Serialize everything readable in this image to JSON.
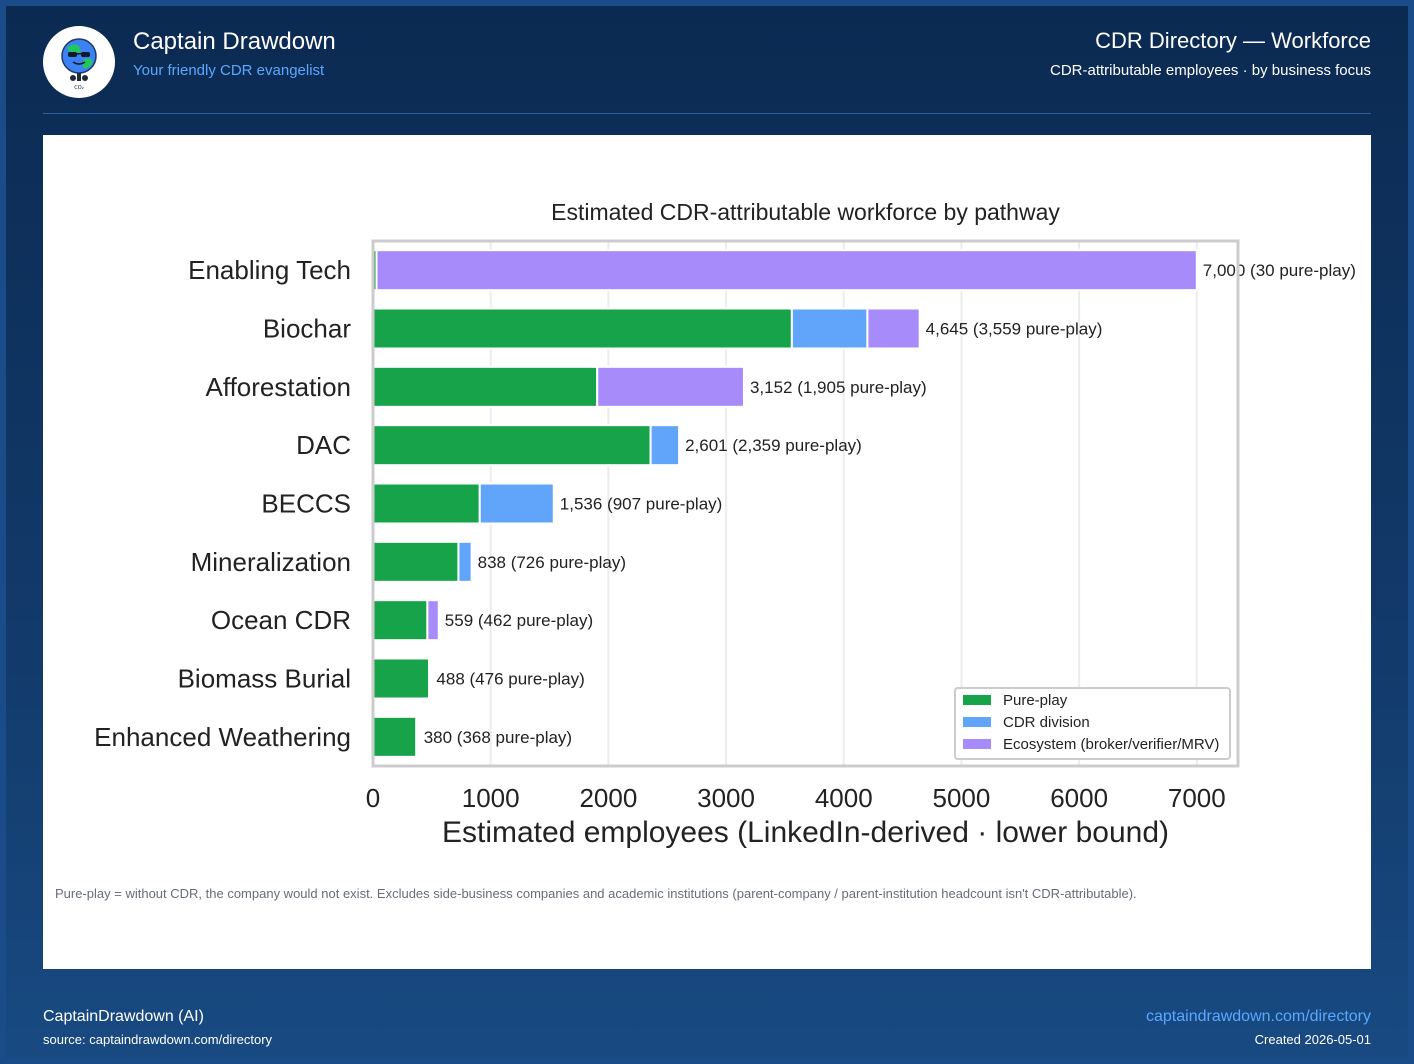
{
  "header": {
    "brand_name": "Captain Drawdown",
    "brand_tagline": "Your friendly CDR evangelist",
    "title": "CDR Directory — Workforce",
    "subtitle": "CDR-attributable employees · by business focus",
    "logo_icon": "earth-mascot-icon",
    "logo_text": "CO₂"
  },
  "colors": {
    "pure_play": "#16a34a",
    "cdr_division": "#60a5fa",
    "ecosystem": "#a78bfa",
    "accent": "#5aa8ff"
  },
  "chart_data": {
    "type": "bar",
    "orientation": "horizontal",
    "stacked": true,
    "title": "Estimated CDR-attributable workforce by pathway",
    "xlabel": "Estimated employees (LinkedIn-derived · lower bound)",
    "ylabel": "",
    "xlim": [
      0,
      7350
    ],
    "xticks": [
      0,
      1000,
      2000,
      3000,
      4000,
      5000,
      6000,
      7000
    ],
    "grid": true,
    "legend_position": "lower-right",
    "categories": [
      "Enabling Tech",
      "Biochar",
      "Afforestation",
      "DAC",
      "BECCS",
      "Mineralization",
      "Ocean CDR",
      "Biomass Burial",
      "Enhanced Weathering"
    ],
    "series": [
      {
        "name": "Pure-play",
        "values": [
          30,
          3559,
          1905,
          2359,
          907,
          726,
          462,
          476,
          368
        ]
      },
      {
        "name": "CDR division",
        "values": [
          0,
          642,
          0,
          242,
          629,
          112,
          0,
          12,
          12
        ]
      },
      {
        "name": "Ecosystem (broker/verifier/MRV)",
        "values": [
          6970,
          444,
          1247,
          0,
          0,
          0,
          97,
          0,
          0
        ]
      }
    ],
    "data_labels": [
      "7,000  (30 pure-play)",
      "4,645  (3,559 pure-play)",
      "3,152  (1,905 pure-play)",
      "2,601  (2,359 pure-play)",
      "1,536  (907 pure-play)",
      "838  (726 pure-play)",
      "559  (462 pure-play)",
      "488  (476 pure-play)",
      "380  (368 pure-play)"
    ]
  },
  "footnote": "Pure-play = without CDR, the company would not exist.  Excludes side-business companies and academic institutions (parent-company / parent-institution headcount isn't CDR-attributable).",
  "footer": {
    "author": "CaptainDrawdown (AI)",
    "source": "source: captaindrawdown.com/directory",
    "link": "captaindrawdown.com/directory",
    "created": "Created 2026-05-01"
  }
}
